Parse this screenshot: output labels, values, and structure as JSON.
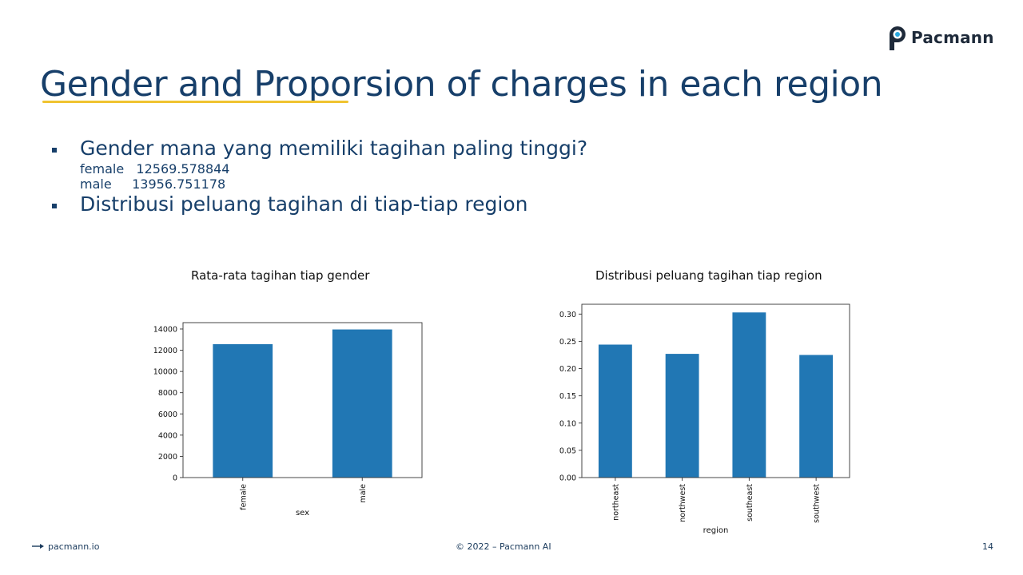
{
  "brand": {
    "name": "Pacmann"
  },
  "title": "Gender and Proporsion of charges in each region",
  "bullets": [
    {
      "text": "Gender mana yang memiliki tagihan paling tinggi?",
      "sub": [
        "female   12569.578844",
        "male     13956.751178"
      ]
    },
    {
      "text": "Distribusi peluang tagihan di tiap-tiap region"
    }
  ],
  "chart_data": [
    {
      "type": "bar",
      "title": "Rata-rata tagihan tiap gender",
      "categories": [
        "female",
        "male"
      ],
      "values": [
        12569.578844,
        13956.751178
      ],
      "xlabel": "sex",
      "ylabel": "",
      "ylim": [
        0,
        14600
      ],
      "yticks": [
        0,
        2000,
        4000,
        6000,
        8000,
        10000,
        12000,
        14000
      ],
      "color": "#2177b4",
      "grid": false
    },
    {
      "type": "bar",
      "title": "Distribusi peluang tagihan tiap region",
      "categories": [
        "northeast",
        "northwest",
        "southeast",
        "southwest"
      ],
      "values": [
        0.244,
        0.227,
        0.303,
        0.225
      ],
      "xlabel": "region",
      "ylabel": "",
      "ylim": [
        0,
        0.318
      ],
      "yticks": [
        0.0,
        0.05,
        0.1,
        0.15,
        0.2,
        0.25,
        0.3
      ],
      "color": "#2177b4",
      "grid": false
    }
  ],
  "footer": {
    "left": "pacmann.io",
    "center": "© 2022 – Pacmann AI",
    "page": "14"
  }
}
